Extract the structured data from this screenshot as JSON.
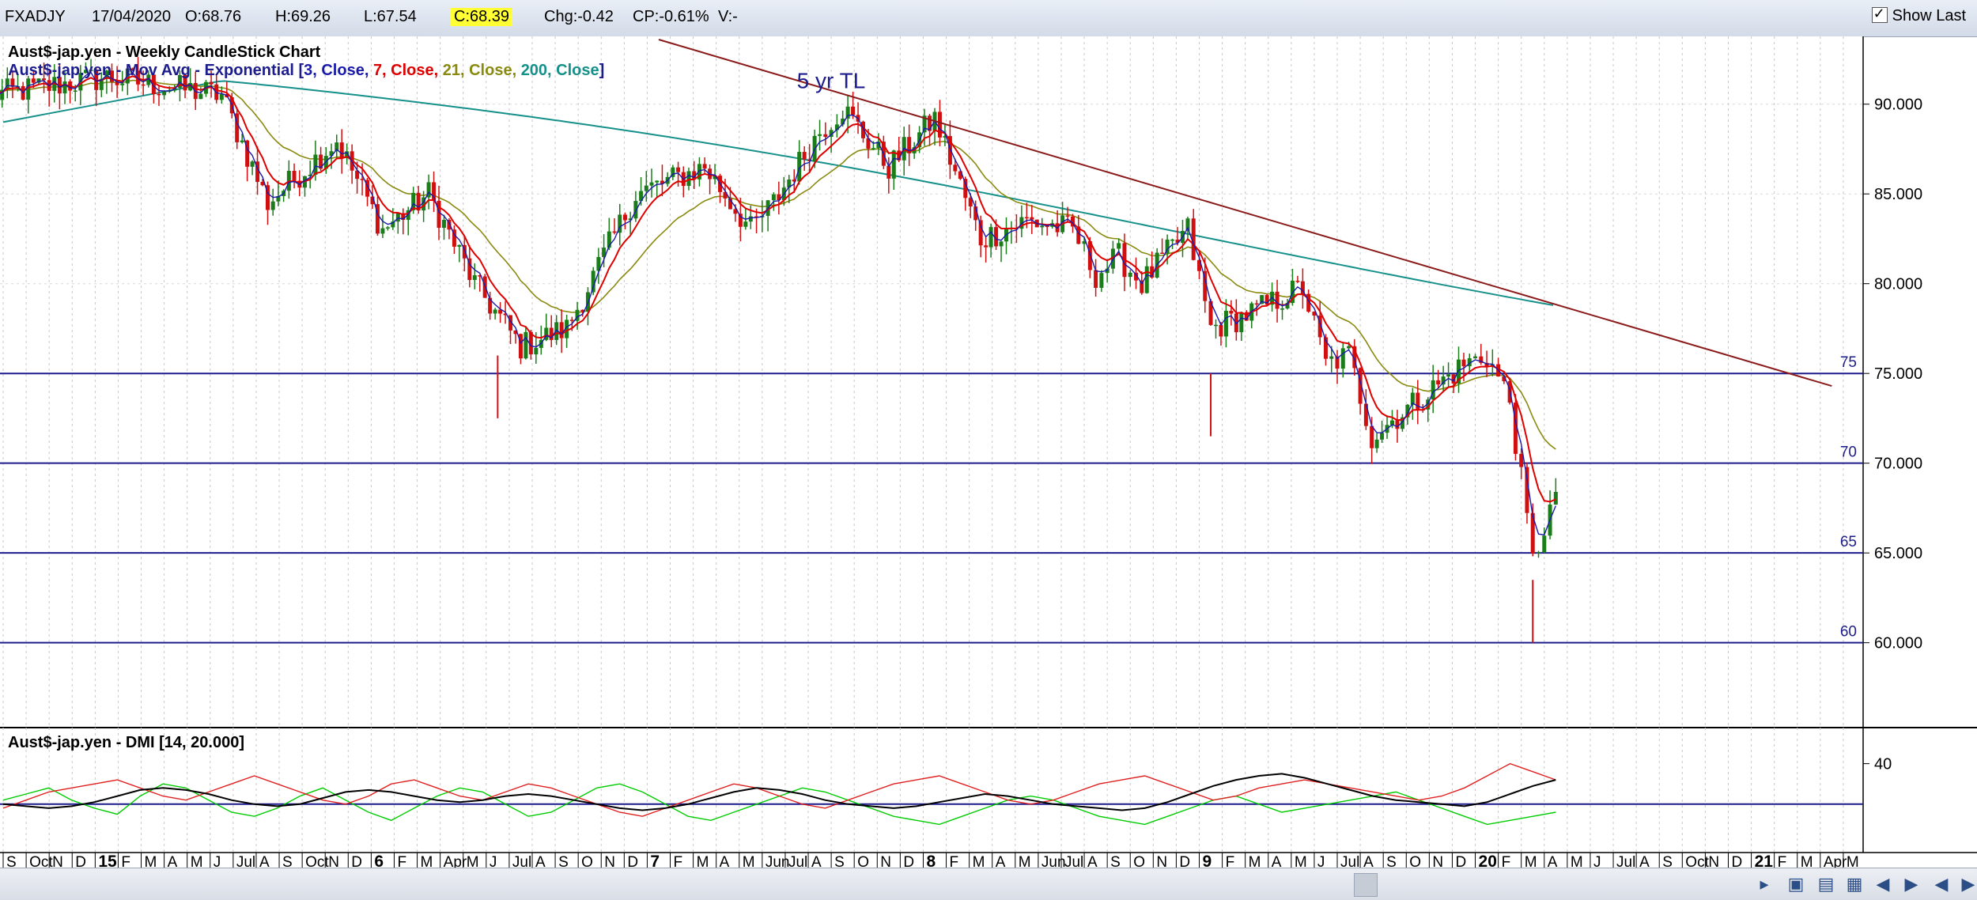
{
  "header": {
    "symbol": "FXADJY",
    "date": "17/04/2020",
    "open": "O:68.76",
    "high": "H:69.26",
    "low": "L:67.54",
    "close": "C:68.39",
    "change": "Chg:-0.42",
    "change_pct": "CP:-0.61%",
    "volume": "V:-",
    "show_last_label": "Show Last"
  },
  "colors": {
    "candle_up": "#1a7d1a",
    "candle_down": "#d01010",
    "ema3": "#1a1aaa",
    "ema7": "#e00000",
    "ema21": "#8a8a10",
    "ema200": "#15908a",
    "trendline": "#8b1a1a",
    "hline": "#1c1c8c",
    "dmi_plus": "#00cc00",
    "dmi_minus": "#e02020",
    "adx": "#000000"
  },
  "chart_data": [
    {
      "type": "candlestick",
      "title": "Aust$-jap.yen - Weekly CandleStick Chart",
      "subtitle_prefix": "Aust$-jap.yen - Mov Avg - Exponential [",
      "subtitle_parts": [
        "3, Close",
        "7, Close",
        "21, Close",
        "200, Close"
      ],
      "subtitle_suffix": "]",
      "timeframe": "Weekly",
      "x_tick_labels": [
        "S",
        "Oct",
        "N",
        "D",
        "15",
        "F",
        "M",
        "A",
        "M",
        "J",
        "Jul",
        "A",
        "S",
        "Oct",
        "N",
        "D",
        "6",
        "F",
        "M",
        "Apr",
        "M",
        "J",
        "Jul",
        "A",
        "S",
        "O",
        "N",
        "D",
        "7",
        "F",
        "M",
        "A",
        "M",
        "Jun",
        "Jul",
        "A",
        "S",
        "O",
        "N",
        "D",
        "8",
        "F",
        "M",
        "A",
        "M",
        "Jun",
        "Jul",
        "A",
        "S",
        "O",
        "N",
        "D",
        "9",
        "F",
        "M",
        "A",
        "M",
        "J",
        "Jul",
        "A",
        "S",
        "O",
        "N",
        "D",
        "20",
        "F",
        "M",
        "A",
        "M",
        "J",
        "Jul",
        "A",
        "S",
        "Oct",
        "N",
        "D",
        "21",
        "F",
        "M",
        "Apr",
        "M"
      ],
      "y_tick_labels": [
        "90.000",
        "85.000",
        "80.000",
        "75.000",
        "70.000",
        "65.000",
        "60.000"
      ],
      "ylim": [
        55.8,
        93.6
      ],
      "grid": true,
      "series_close_points": [
        [
          "Aug 2014",
          90.5
        ],
        [
          "Jan 2015",
          91.5
        ],
        [
          "Jun 2015",
          90.5
        ],
        [
          "Aug 2015",
          84.5
        ],
        [
          "Nov 2015",
          88.0
        ],
        [
          "Jan 2016",
          83.0
        ],
        [
          "Mar 2016",
          85.0
        ],
        [
          "May 2016",
          80.0
        ],
        [
          "Jul 2016",
          76.5
        ],
        [
          "Sep 2016",
          77.5
        ],
        [
          "Dec 2016",
          85.0
        ],
        [
          "Mar 2017",
          86.5
        ],
        [
          "May 2017",
          83.0
        ],
        [
          "Jun 2017",
          84.5
        ],
        [
          "Aug 2017",
          88.5
        ],
        [
          "Sep 2017",
          89.8
        ],
        [
          "Nov 2017",
          86.5
        ],
        [
          "Jan 2018",
          89.2
        ],
        [
          "Mar 2018",
          82.5
        ],
        [
          "May 2018",
          83.5
        ],
        [
          "Jul 2018",
          83.0
        ],
        [
          "Aug 2018",
          80.5
        ],
        [
          "Sep 2018",
          81.5
        ],
        [
          "Oct 2018",
          80.0
        ],
        [
          "Dec 2018",
          83.0
        ],
        [
          "Jan 2019",
          77.5
        ],
        [
          "Mar 2019",
          78.5
        ],
        [
          "May 2019",
          79.8
        ],
        [
          "Jun 2019",
          75.5
        ],
        [
          "Jul 2019",
          76.0
        ],
        [
          "Aug 2019",
          71.5
        ],
        [
          "Oct 2019",
          73.5
        ],
        [
          "Dec 2019",
          75.5
        ],
        [
          "Jan 2020",
          76.0
        ],
        [
          "Feb 2020",
          73.5
        ],
        [
          "Mar 2020",
          64.5
        ],
        [
          "Apr 2020",
          68.4
        ]
      ],
      "low_spikes": [
        [
          "Jun 2016",
          72.5
        ],
        [
          "Jan 2019",
          71.5
        ],
        [
          "Mar 2020",
          60.0
        ]
      ],
      "trendline": {
        "label": "5 yr TL",
        "from": [
          "Jan 2017",
          93.6
        ],
        "to": [
          "Apr 2021",
          74.3
        ]
      },
      "ema200_end": [
        "Apr 2020",
        79.4
      ],
      "horizontal_lines": [
        {
          "value": 75,
          "label": "75"
        },
        {
          "value": 70,
          "label": "70"
        },
        {
          "value": 65,
          "label": "65"
        },
        {
          "value": 60,
          "label": "60"
        }
      ]
    },
    {
      "type": "line",
      "title": "Aust$-jap.yen - DMI [14, 20.000]",
      "y_tick_labels": [
        "40"
      ],
      "reference_line": 20,
      "series": [
        {
          "name": "+DI",
          "values": [
            22,
            25,
            28,
            22,
            18,
            15,
            24,
            30,
            28,
            22,
            16,
            14,
            18,
            24,
            28,
            22,
            16,
            12,
            18,
            24,
            28,
            26,
            20,
            14,
            16,
            22,
            28,
            30,
            26,
            20,
            14,
            12,
            16,
            20,
            24,
            28,
            26,
            22,
            18,
            14,
            12,
            10,
            14,
            18,
            22,
            24,
            22,
            18,
            14,
            12,
            10,
            14,
            18,
            22,
            24,
            20,
            16,
            18,
            20,
            22,
            24,
            26,
            22,
            18,
            14,
            10,
            12,
            14,
            16
          ]
        },
        {
          "name": "-DI",
          "values": [
            18,
            22,
            26,
            28,
            30,
            32,
            28,
            24,
            22,
            26,
            30,
            34,
            30,
            26,
            22,
            20,
            24,
            30,
            32,
            28,
            24,
            22,
            26,
            30,
            28,
            24,
            20,
            16,
            14,
            18,
            22,
            26,
            30,
            28,
            24,
            20,
            18,
            22,
            26,
            30,
            32,
            34,
            30,
            26,
            22,
            20,
            22,
            26,
            30,
            32,
            34,
            30,
            26,
            22,
            24,
            28,
            30,
            32,
            30,
            28,
            26,
            24,
            22,
            24,
            28,
            34,
            40,
            36,
            32
          ]
        },
        {
          "name": "ADX",
          "values": [
            20,
            19,
            18,
            19,
            21,
            24,
            27,
            28,
            27,
            25,
            22,
            20,
            19,
            20,
            23,
            26,
            27,
            26,
            24,
            22,
            21,
            22,
            24,
            25,
            24,
            22,
            20,
            18,
            17,
            18,
            20,
            23,
            26,
            28,
            27,
            25,
            22,
            20,
            19,
            18,
            19,
            21,
            23,
            25,
            24,
            22,
            20,
            19,
            18,
            17,
            18,
            21,
            25,
            29,
            32,
            34,
            35,
            33,
            30,
            27,
            24,
            22,
            21,
            20,
            19,
            21,
            25,
            29,
            32
          ]
        }
      ]
    }
  ]
}
